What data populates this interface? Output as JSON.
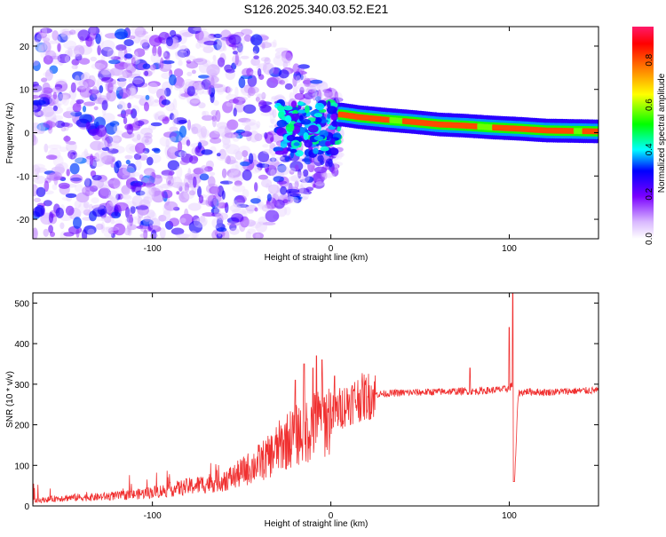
{
  "title": "S126.2025.340.03.52.E21",
  "chart_data": [
    {
      "type": "heatmap",
      "xlabel": "Height of straight line (km)",
      "ylabel": "Frequency (Hz)",
      "xlim": [
        -167,
        150
      ],
      "ylim": [
        -24.5,
        24.5
      ],
      "xticks": [
        -100,
        0,
        100
      ],
      "xtick_labels": [
        "-100",
        "0",
        "100"
      ],
      "yticks": [
        -20,
        -10,
        0,
        10,
        20
      ],
      "ytick_labels": [
        "-20",
        "-10",
        "0",
        "10",
        "20"
      ],
      "colorbar": {
        "label": "Normalized spectral amplitude",
        "range": [
          0,
          0.95
        ],
        "ticks": [
          0,
          0.2,
          0.4,
          0.6,
          0.8
        ],
        "tick_labels": [
          "0.0",
          "0.2",
          "0.4",
          "0.6",
          "0.8"
        ]
      },
      "ridge": {
        "description": "dominant frequency track",
        "points": [
          [
            5,
            4.2
          ],
          [
            15,
            3.6
          ],
          [
            30,
            3.0
          ],
          [
            45,
            2.5
          ],
          [
            60,
            1.9
          ],
          [
            75,
            1.6
          ],
          [
            90,
            1.2
          ],
          [
            105,
            0.9
          ],
          [
            120,
            0.5
          ],
          [
            135,
            0.4
          ],
          [
            148,
            0.3
          ]
        ],
        "peak_amplitude": 0.95
      },
      "noise_region": {
        "x_range": [
          -167,
          0
        ],
        "typical_amplitude": 0.1
      }
    },
    {
      "type": "line",
      "xlabel": "Height of straight line (km)",
      "ylabel": "SNR (10 * v/v)",
      "xlim": [
        -167,
        150
      ],
      "ylim": [
        0,
        525
      ],
      "xticks": [
        -100,
        0,
        100
      ],
      "xtick_labels": [
        "-100",
        "0",
        "100"
      ],
      "yticks": [
        0,
        100,
        200,
        300,
        400,
        500
      ],
      "ytick_labels": [
        "0",
        "100",
        "200",
        "300",
        "400",
        "500"
      ],
      "color": "#f03030",
      "series": [
        {
          "x": [
            -167,
            -150,
            -130,
            -110,
            -90,
            -70,
            -55,
            -45,
            -35,
            -28,
            -20,
            -12,
            -5,
            0,
            5,
            10,
            15,
            20,
            25,
            35,
            50,
            65,
            75,
            80,
            85,
            90,
            95,
            98,
            100,
            102,
            103,
            105,
            110,
            120,
            135,
            150
          ],
          "y": [
            12,
            20,
            22,
            28,
            40,
            55,
            70,
            95,
            120,
            150,
            175,
            190,
            210,
            220,
            240,
            255,
            265,
            270,
            275,
            278,
            280,
            282,
            283,
            282,
            284,
            285,
            287,
            288,
            290,
            300,
            60,
            278,
            282,
            280,
            283,
            285
          ],
          "spikes": [
            [
              -20,
              310
            ],
            [
              -15,
              350
            ],
            [
              -10,
              340
            ],
            [
              -8,
              370
            ],
            [
              -5,
              360
            ],
            [
              2,
              320
            ],
            [
              78,
              340
            ],
            [
              100,
              440
            ],
            [
              102,
              525
            ]
          ]
        }
      ]
    }
  ]
}
